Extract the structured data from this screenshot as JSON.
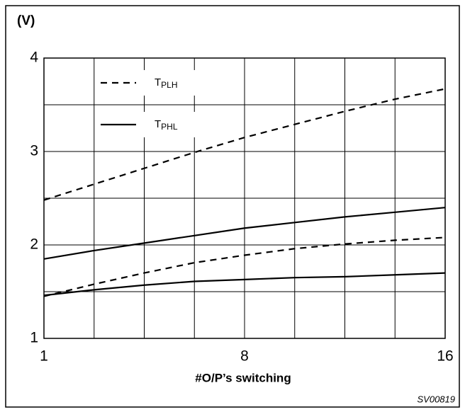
{
  "chart_data": {
    "type": "line",
    "y_unit_label": "(V)",
    "x_label": "#O/P’s switching",
    "figure_code": "SV00819",
    "categories": [
      "1",
      null,
      null,
      null,
      "8",
      null,
      null,
      null,
      "16"
    ],
    "ylim": [
      1,
      4
    ],
    "yticks": [
      1,
      2,
      3,
      4
    ],
    "y_minor_grid": [
      1.5,
      2.5,
      3.5
    ],
    "grid": true,
    "color": "#000000",
    "series": [
      {
        "name": "T",
        "subscript": "PLH",
        "dashed": true,
        "curves": [
          [
            2.48,
            2.65,
            2.82,
            2.99,
            3.15,
            3.29,
            3.43,
            3.56,
            3.67
          ],
          [
            1.45,
            1.58,
            1.7,
            1.81,
            1.89,
            1.96,
            2.01,
            2.05,
            2.08
          ]
        ]
      },
      {
        "name": "T",
        "subscript": "PHL",
        "dashed": false,
        "curves": [
          [
            1.85,
            1.94,
            2.02,
            2.1,
            2.18,
            2.24,
            2.3,
            2.35,
            2.4
          ],
          [
            1.46,
            1.52,
            1.57,
            1.61,
            1.63,
            1.65,
            1.66,
            1.68,
            1.7
          ]
        ]
      }
    ]
  }
}
